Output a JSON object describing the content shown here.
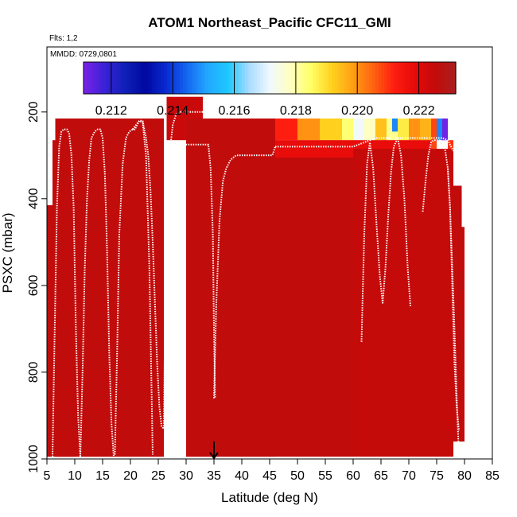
{
  "chart_data": {
    "type": "heatmap",
    "title": "ATOM1 Northeast_Pacific CFC11_GMI",
    "annotations": [
      "Flts: 1,2",
      "MMDD: 0729,0801"
    ],
    "xlabel": "Latitude (deg N)",
    "ylabel": "PSXC (mbar)",
    "xlim": [
      5,
      85
    ],
    "ylim": [
      1000,
      50
    ],
    "x_ticks": [
      "5",
      "10",
      "15",
      "20",
      "25",
      "30",
      "35",
      "40",
      "45",
      "50",
      "55",
      "60",
      "65",
      "70",
      "75",
      "80",
      "85"
    ],
    "y_ticks": [
      "200",
      "400",
      "600",
      "800",
      "1000"
    ],
    "colorbar": {
      "min": 0.2111,
      "max": 0.2232,
      "tick_labels": [
        "0.212",
        "0.214",
        "0.216",
        "0.218",
        "0.220",
        "0.222"
      ],
      "tick_values": [
        0.212,
        0.214,
        0.216,
        0.218,
        0.22,
        0.222
      ],
      "colors": [
        "#7b22e6",
        "#3a22d8",
        "#1020b8",
        "#0008a0",
        "#0a2ad2",
        "#1466f0",
        "#22a8ff",
        "#1ec8ff",
        "#a8dcff",
        "#f0f8ff",
        "#ffffc0",
        "#ffff66",
        "#ffd21e",
        "#ffa014",
        "#ff6410",
        "#ff1e10",
        "#e60a0a",
        "#c40a0a",
        "#a82020"
      ]
    },
    "background_value": 0.2226,
    "column_bins": [
      {
        "lat0": 5,
        "lat1": 6,
        "ptop": 415,
        "pbot": 995,
        "value": 0.2226
      },
      {
        "lat0": 6,
        "lat1": 10,
        "ptop": 265,
        "pbot": 995,
        "value": 0.2226
      },
      {
        "lat0": 6.5,
        "lat1": 24,
        "ptop": 215,
        "pbot": 995,
        "value": 0.2226
      },
      {
        "lat0": 24,
        "lat1": 26,
        "ptop": 215,
        "pbot": 995,
        "value": 0.2226
      },
      {
        "lat0": 26.5,
        "lat1": 33,
        "ptop": 165,
        "pbot": 265,
        "value": 0.2224
      },
      {
        "lat0": 30,
        "lat1": 46,
        "ptop": 215,
        "pbot": 995,
        "value": 0.2226
      },
      {
        "lat0": 46,
        "lat1": 50,
        "ptop": 215,
        "pbot": 265,
        "value": 0.2212
      },
      {
        "lat0": 50,
        "lat1": 54,
        "ptop": 215,
        "pbot": 265,
        "value": 0.22
      },
      {
        "lat0": 54,
        "lat1": 58,
        "ptop": 215,
        "pbot": 265,
        "value": 0.2192
      },
      {
        "lat0": 58,
        "lat1": 60,
        "ptop": 215,
        "pbot": 265,
        "value": 0.2184
      },
      {
        "lat0": 60,
        "lat1": 62,
        "ptop": 215,
        "pbot": 265,
        "value": 0.2172
      },
      {
        "lat0": 62,
        "lat1": 64,
        "ptop": 215,
        "pbot": 265,
        "value": 0.2178
      },
      {
        "lat0": 64,
        "lat1": 66,
        "ptop": 215,
        "pbot": 265,
        "value": 0.2194
      },
      {
        "lat0": 66,
        "lat1": 68,
        "ptop": 215,
        "pbot": 265,
        "value": 0.2182
      },
      {
        "lat0": 67,
        "lat1": 68,
        "ptop": 215,
        "pbot": 245,
        "value": 0.2148
      },
      {
        "lat0": 68,
        "lat1": 70,
        "ptop": 215,
        "pbot": 265,
        "value": 0.2188
      },
      {
        "lat0": 70,
        "lat1": 72,
        "ptop": 215,
        "pbot": 265,
        "value": 0.22
      },
      {
        "lat0": 72,
        "lat1": 74,
        "ptop": 215,
        "pbot": 265,
        "value": 0.2196
      },
      {
        "lat0": 74,
        "lat1": 75,
        "ptop": 215,
        "pbot": 285,
        "value": 0.2208
      },
      {
        "lat0": 75,
        "lat1": 76,
        "ptop": 215,
        "pbot": 265,
        "value": 0.2148
      },
      {
        "lat0": 76,
        "lat1": 77,
        "ptop": 215,
        "pbot": 265,
        "value": 0.2112
      },
      {
        "lat0": 77,
        "lat1": 78,
        "ptop": 265,
        "pbot": 335,
        "value": 0.221
      },
      {
        "lat0": 74,
        "lat1": 77,
        "ptop": 315,
        "pbot": 335,
        "value": 0.2214
      },
      {
        "lat0": 46,
        "lat1": 74,
        "ptop": 265,
        "pbot": 305,
        "value": 0.2218
      },
      {
        "lat0": 46,
        "lat1": 60,
        "ptop": 305,
        "pbot": 995,
        "value": 0.2226
      },
      {
        "lat0": 60,
        "lat1": 78,
        "ptop": 285,
        "pbot": 995,
        "value": 0.2225
      },
      {
        "lat0": 78,
        "lat1": 79.5,
        "ptop": 370,
        "pbot": 960,
        "value": 0.2226
      },
      {
        "lat0": 79.5,
        "lat1": 80,
        "ptop": 465,
        "pbot": 960,
        "value": 0.2226
      }
    ],
    "flight_tracks": [
      {
        "lat": [
          6,
          6.4,
          6.8,
          7.2,
          7.6,
          8.0,
          8.6,
          9.0,
          9.4,
          9.8,
          10.2,
          10.6,
          11.0
        ],
        "pressure": [
          995,
          700,
          420,
          280,
          245,
          240,
          240,
          250,
          300,
          420,
          700,
          900,
          995
        ]
      },
      {
        "lat": [
          11,
          11.4,
          11.8,
          12.2,
          12.6,
          13.0,
          13.6,
          14.1,
          14.6,
          15.0,
          15.4,
          15.8,
          16.2,
          16.6,
          17.0
        ],
        "pressure": [
          995,
          800,
          560,
          400,
          310,
          260,
          245,
          240,
          240,
          260,
          340,
          520,
          760,
          920,
          995
        ]
      },
      {
        "lat": [
          17.2,
          17.6,
          18.0,
          18.6,
          19.2,
          19.8,
          20.4,
          20.8,
          21.2,
          21.6,
          22.2,
          22.8,
          23.4,
          24.0
        ],
        "pressure": [
          990,
          760,
          480,
          320,
          260,
          245,
          240,
          240,
          230,
          220,
          225,
          300,
          560,
          990
        ]
      },
      {
        "lat": [
          20.4,
          21.0,
          21.6,
          22.2,
          22.8,
          23.2,
          23.6,
          24.0,
          24.4,
          24.8,
          25.2,
          25.6,
          26.0
        ],
        "pressure": [
          240,
          230,
          220,
          220,
          260,
          300,
          380,
          500,
          640,
          780,
          880,
          925,
          930
        ]
      },
      {
        "lat": [
          26.0,
          26.2,
          26.6,
          27.0,
          27.6,
          28.2,
          29.0,
          30.0,
          31.0,
          32.0,
          33.0,
          33.4
        ],
        "pressure": [
          930,
          700,
          450,
          300,
          230,
          205,
          200,
          200,
          200,
          200,
          200,
          205
        ]
      },
      {
        "lat": [
          26.6,
          27.4,
          28.5,
          30.0,
          31.5,
          33.0,
          34.0,
          34.4,
          34.8,
          35.0,
          35.2
        ],
        "pressure": [
          360,
          300,
          280,
          275,
          275,
          275,
          275,
          330,
          480,
          700,
          860
        ]
      },
      {
        "lat": [
          35.0,
          35.4,
          36.0,
          36.6,
          37.2,
          38.0,
          39.0,
          40.5,
          42.5,
          44.5,
          45.5,
          46.0
        ],
        "pressure": [
          860,
          650,
          450,
          360,
          330,
          310,
          300,
          300,
          300,
          300,
          300,
          280
        ]
      },
      {
        "lat": [
          46,
          50,
          55,
          58,
          60,
          62,
          64,
          67,
          70,
          72,
          74,
          76,
          77,
          78
        ],
        "pressure": [
          280,
          280,
          280,
          280,
          280,
          270,
          260,
          260,
          260,
          260,
          260,
          260,
          265,
          290
        ]
      },
      {
        "lat": [
          61.5,
          62.0,
          62.5,
          63.0,
          63.6,
          64.2,
          64.8,
          65.3,
          65.8,
          66.3,
          66.8,
          67.3,
          68.0,
          68.6,
          69.2,
          69.8,
          70.3
        ],
        "pressure": [
          730,
          480,
          320,
          270,
          330,
          460,
          580,
          640,
          560,
          440,
          340,
          280,
          260,
          300,
          400,
          560,
          650
        ]
      },
      {
        "lat": [
          72.5,
          73.0,
          73.5,
          74.0,
          74.5,
          75.0,
          75.5,
          76.0,
          76.5,
          77.0,
          77.4,
          77.8,
          78.2,
          78.6,
          78.9
        ],
        "pressure": [
          430,
          360,
          300,
          270,
          265,
          265,
          265,
          270,
          285,
          330,
          420,
          560,
          700,
          860,
          960
        ]
      },
      {
        "lat": [
          77.0,
          77.4,
          77.8,
          78.2,
          78.6,
          79.0
        ],
        "pressure": [
          330,
          420,
          600,
          780,
          880,
          935
        ]
      }
    ],
    "marker": {
      "lat": 35,
      "pressure": 1000
    }
  }
}
